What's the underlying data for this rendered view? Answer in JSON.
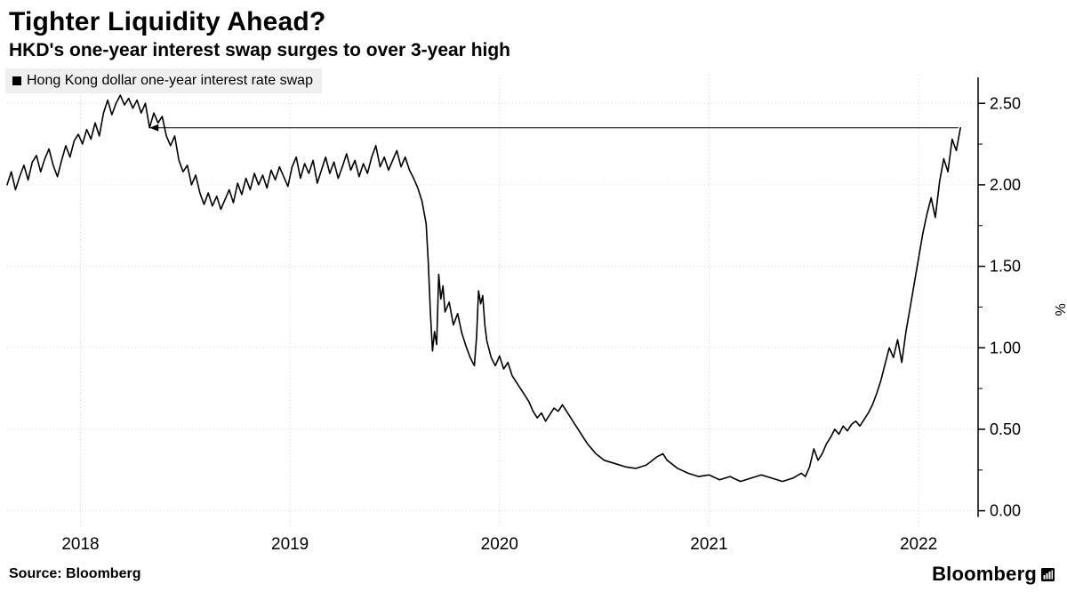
{
  "header": {
    "title": "Tighter Liquidity Ahead?",
    "subtitle": "HKD's one-year interest swap surges to over 3-year high"
  },
  "legend": {
    "marker_icon": "black-square",
    "label": "Hong Kong dollar one-year interest rate swap"
  },
  "footer": {
    "source": "Source: Bloomberg",
    "brand": "Bloomberg",
    "brand_icon": "bloomberg-terminal-icon"
  },
  "chart_data": {
    "type": "line",
    "title": "Tighter Liquidity Ahead?",
    "subtitle": "HKD's one-year interest swap surges to over 3-year high",
    "xlabel": "",
    "ylabel": "%",
    "grid": "dotted",
    "legend_position": "top-left",
    "axis_side": "right",
    "xlim": [
      2017.65,
      2022.25
    ],
    "ylim": [
      0,
      2.5
    ],
    "x_ticks": [
      2018,
      2019,
      2020,
      2021,
      2022
    ],
    "x_tick_labels": [
      "2018",
      "2019",
      "2020",
      "2021",
      "2022"
    ],
    "y_ticks": [
      0,
      0.5,
      1,
      1.5,
      2,
      2.5
    ],
    "y_tick_labels": [
      "0.00",
      "0.50",
      "1.00",
      "1.50",
      "2.00",
      "2.50"
    ],
    "annotation": {
      "type": "arrow",
      "y": 2.35,
      "from_x": 2022.19,
      "to_x": 2018.33
    },
    "series": [
      {
        "name": "Hong Kong dollar one-year interest rate swap",
        "color": "#000000",
        "points": [
          [
            2017.65,
            2.0
          ],
          [
            2017.67,
            2.08
          ],
          [
            2017.69,
            1.97
          ],
          [
            2017.71,
            2.05
          ],
          [
            2017.73,
            2.12
          ],
          [
            2017.75,
            2.03
          ],
          [
            2017.77,
            2.14
          ],
          [
            2017.79,
            2.18
          ],
          [
            2017.81,
            2.08
          ],
          [
            2017.83,
            2.16
          ],
          [
            2017.85,
            2.22
          ],
          [
            2017.87,
            2.12
          ],
          [
            2017.89,
            2.05
          ],
          [
            2017.91,
            2.15
          ],
          [
            2017.93,
            2.24
          ],
          [
            2017.95,
            2.17
          ],
          [
            2017.97,
            2.27
          ],
          [
            2017.99,
            2.31
          ],
          [
            2018.01,
            2.25
          ],
          [
            2018.03,
            2.34
          ],
          [
            2018.05,
            2.28
          ],
          [
            2018.07,
            2.38
          ],
          [
            2018.09,
            2.3
          ],
          [
            2018.11,
            2.44
          ],
          [
            2018.13,
            2.52
          ],
          [
            2018.15,
            2.43
          ],
          [
            2018.17,
            2.5
          ],
          [
            2018.19,
            2.55
          ],
          [
            2018.21,
            2.49
          ],
          [
            2018.23,
            2.53
          ],
          [
            2018.25,
            2.47
          ],
          [
            2018.27,
            2.52
          ],
          [
            2018.29,
            2.44
          ],
          [
            2018.31,
            2.5
          ],
          [
            2018.33,
            2.35
          ],
          [
            2018.35,
            2.44
          ],
          [
            2018.37,
            2.38
          ],
          [
            2018.39,
            2.42
          ],
          [
            2018.41,
            2.3
          ],
          [
            2018.43,
            2.24
          ],
          [
            2018.45,
            2.3
          ],
          [
            2018.47,
            2.15
          ],
          [
            2018.49,
            2.08
          ],
          [
            2018.51,
            2.12
          ],
          [
            2018.53,
            2.0
          ],
          [
            2018.55,
            2.06
          ],
          [
            2018.57,
            1.95
          ],
          [
            2018.59,
            1.88
          ],
          [
            2018.61,
            1.95
          ],
          [
            2018.63,
            1.87
          ],
          [
            2018.65,
            1.93
          ],
          [
            2018.67,
            1.85
          ],
          [
            2018.69,
            1.91
          ],
          [
            2018.71,
            1.97
          ],
          [
            2018.73,
            1.89
          ],
          [
            2018.75,
            2.01
          ],
          [
            2018.77,
            1.94
          ],
          [
            2018.79,
            2.04
          ],
          [
            2018.81,
            1.97
          ],
          [
            2018.83,
            2.07
          ],
          [
            2018.85,
            2.0
          ],
          [
            2018.87,
            2.06
          ],
          [
            2018.89,
            1.98
          ],
          [
            2018.91,
            2.09
          ],
          [
            2018.93,
            2.03
          ],
          [
            2018.95,
            2.11
          ],
          [
            2018.97,
            2.05
          ],
          [
            2018.99,
            1.99
          ],
          [
            2019.01,
            2.11
          ],
          [
            2019.03,
            2.17
          ],
          [
            2019.05,
            2.04
          ],
          [
            2019.07,
            2.13
          ],
          [
            2019.09,
            2.07
          ],
          [
            2019.11,
            2.15
          ],
          [
            2019.13,
            2.01
          ],
          [
            2019.15,
            2.09
          ],
          [
            2019.17,
            2.17
          ],
          [
            2019.19,
            2.07
          ],
          [
            2019.21,
            2.14
          ],
          [
            2019.23,
            2.04
          ],
          [
            2019.25,
            2.11
          ],
          [
            2019.27,
            2.19
          ],
          [
            2019.29,
            2.09
          ],
          [
            2019.31,
            2.15
          ],
          [
            2019.33,
            2.05
          ],
          [
            2019.35,
            2.13
          ],
          [
            2019.37,
            2.07
          ],
          [
            2019.39,
            2.17
          ],
          [
            2019.41,
            2.24
          ],
          [
            2019.43,
            2.11
          ],
          [
            2019.45,
            2.17
          ],
          [
            2019.47,
            2.09
          ],
          [
            2019.49,
            2.15
          ],
          [
            2019.51,
            2.21
          ],
          [
            2019.53,
            2.11
          ],
          [
            2019.55,
            2.17
          ],
          [
            2019.57,
            2.09
          ],
          [
            2019.59,
            2.04
          ],
          [
            2019.61,
            1.98
          ],
          [
            2019.63,
            1.9
          ],
          [
            2019.65,
            1.76
          ],
          [
            2019.66,
            1.52
          ],
          [
            2019.67,
            1.22
          ],
          [
            2019.68,
            0.98
          ],
          [
            2019.69,
            1.1
          ],
          [
            2019.7,
            1.02
          ],
          [
            2019.71,
            1.45
          ],
          [
            2019.72,
            1.3
          ],
          [
            2019.73,
            1.38
          ],
          [
            2019.74,
            1.22
          ],
          [
            2019.76,
            1.28
          ],
          [
            2019.78,
            1.14
          ],
          [
            2019.8,
            1.21
          ],
          [
            2019.82,
            1.09
          ],
          [
            2019.84,
            1.01
          ],
          [
            2019.86,
            0.94
          ],
          [
            2019.88,
            0.89
          ],
          [
            2019.89,
            1.06
          ],
          [
            2019.9,
            1.35
          ],
          [
            2019.91,
            1.27
          ],
          [
            2019.92,
            1.32
          ],
          [
            2019.93,
            1.14
          ],
          [
            2019.94,
            1.04
          ],
          [
            2019.96,
            0.94
          ],
          [
            2019.98,
            0.89
          ],
          [
            2020.0,
            0.95
          ],
          [
            2020.02,
            0.87
          ],
          [
            2020.04,
            0.91
          ],
          [
            2020.06,
            0.83
          ],
          [
            2020.08,
            0.79
          ],
          [
            2020.1,
            0.75
          ],
          [
            2020.12,
            0.71
          ],
          [
            2020.14,
            0.67
          ],
          [
            2020.16,
            0.61
          ],
          [
            2020.18,
            0.57
          ],
          [
            2020.2,
            0.6
          ],
          [
            2020.22,
            0.55
          ],
          [
            2020.24,
            0.59
          ],
          [
            2020.26,
            0.63
          ],
          [
            2020.28,
            0.61
          ],
          [
            2020.3,
            0.65
          ],
          [
            2020.32,
            0.61
          ],
          [
            2020.34,
            0.57
          ],
          [
            2020.36,
            0.53
          ],
          [
            2020.38,
            0.49
          ],
          [
            2020.4,
            0.45
          ],
          [
            2020.42,
            0.41
          ],
          [
            2020.44,
            0.38
          ],
          [
            2020.46,
            0.35
          ],
          [
            2020.48,
            0.33
          ],
          [
            2020.5,
            0.31
          ],
          [
            2020.55,
            0.29
          ],
          [
            2020.6,
            0.27
          ],
          [
            2020.65,
            0.26
          ],
          [
            2020.7,
            0.28
          ],
          [
            2020.72,
            0.3
          ],
          [
            2020.75,
            0.33
          ],
          [
            2020.78,
            0.35
          ],
          [
            2020.8,
            0.31
          ],
          [
            2020.82,
            0.29
          ],
          [
            2020.85,
            0.26
          ],
          [
            2020.9,
            0.23
          ],
          [
            2020.95,
            0.21
          ],
          [
            2021.0,
            0.22
          ],
          [
            2021.05,
            0.19
          ],
          [
            2021.1,
            0.21
          ],
          [
            2021.15,
            0.18
          ],
          [
            2021.2,
            0.2
          ],
          [
            2021.25,
            0.22
          ],
          [
            2021.3,
            0.2
          ],
          [
            2021.35,
            0.18
          ],
          [
            2021.4,
            0.2
          ],
          [
            2021.44,
            0.23
          ],
          [
            2021.46,
            0.21
          ],
          [
            2021.48,
            0.27
          ],
          [
            2021.5,
            0.38
          ],
          [
            2021.52,
            0.31
          ],
          [
            2021.54,
            0.35
          ],
          [
            2021.56,
            0.41
          ],
          [
            2021.58,
            0.45
          ],
          [
            2021.6,
            0.5
          ],
          [
            2021.62,
            0.47
          ],
          [
            2021.64,
            0.52
          ],
          [
            2021.66,
            0.49
          ],
          [
            2021.68,
            0.53
          ],
          [
            2021.7,
            0.55
          ],
          [
            2021.72,
            0.52
          ],
          [
            2021.74,
            0.56
          ],
          [
            2021.76,
            0.6
          ],
          [
            2021.78,
            0.65
          ],
          [
            2021.8,
            0.72
          ],
          [
            2021.82,
            0.8
          ],
          [
            2021.84,
            0.9
          ],
          [
            2021.86,
            1.0
          ],
          [
            2021.88,
            0.94
          ],
          [
            2021.9,
            1.05
          ],
          [
            2021.92,
            0.91
          ],
          [
            2021.94,
            1.1
          ],
          [
            2021.96,
            1.25
          ],
          [
            2021.98,
            1.4
          ],
          [
            2022.0,
            1.55
          ],
          [
            2022.02,
            1.7
          ],
          [
            2022.04,
            1.82
          ],
          [
            2022.06,
            1.92
          ],
          [
            2022.08,
            1.8
          ],
          [
            2022.1,
            2.02
          ],
          [
            2022.12,
            2.16
          ],
          [
            2022.14,
            2.08
          ],
          [
            2022.16,
            2.28
          ],
          [
            2022.18,
            2.21
          ],
          [
            2022.2,
            2.35
          ]
        ]
      }
    ]
  }
}
